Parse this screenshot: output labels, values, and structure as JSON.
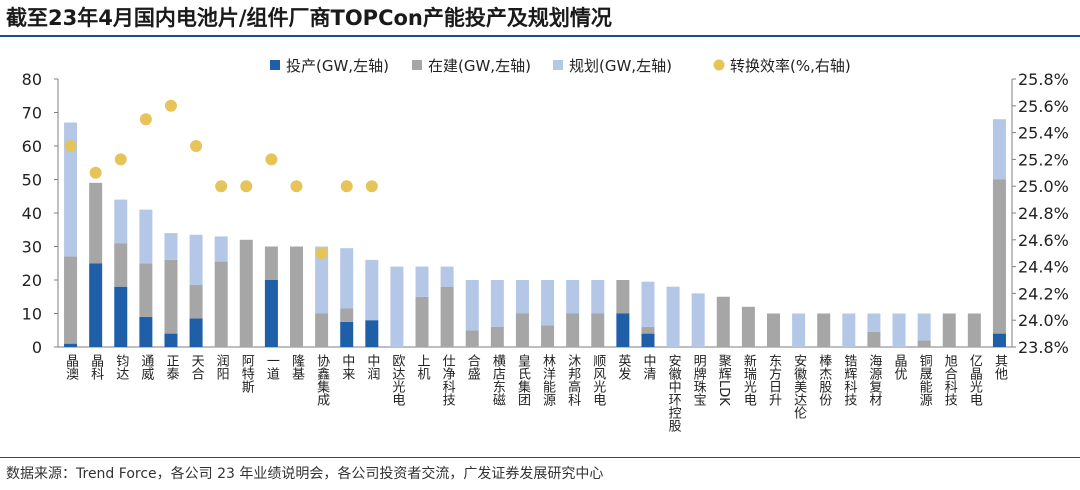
{
  "header": {
    "title": "截至23年4月国内电池片/组件厂商TOPCon产能投产及规划情况"
  },
  "footer": {
    "source": "数据来源：Trend Force，各公司 23 年业绩说明会，各公司投资者交流，广发证券发展研究中心"
  },
  "chart_data": {
    "type": "bar",
    "stacked": true,
    "categories": [
      "晶澳",
      "晶科",
      "钧达",
      "通威",
      "正泰",
      "天合",
      "润阳",
      "阿特斯",
      "一道",
      "隆基",
      "协鑫集成",
      "中来",
      "中润",
      "欧达光电",
      "上机",
      "仕净科技",
      "合盛",
      "横店东磁",
      "皇氏集团",
      "林洋能源",
      "沐邦高科",
      "顺风光电",
      "英发",
      "中清",
      "安徽中环控股",
      "明牌珠宝",
      "聚辉LDK",
      "新瑞光电",
      "东方日升",
      "安徽美达伦",
      "棒杰股份",
      "锆辉科技",
      "海源复材",
      "晶优",
      "铜晟能源",
      "旭合科技",
      "亿晶光电",
      "其他"
    ],
    "series": [
      {
        "name": "投产(GW,左轴)",
        "color": "#1f5fa8",
        "values": [
          1,
          25,
          18,
          9,
          4,
          8.5,
          0,
          0,
          20,
          0,
          0,
          7.5,
          8,
          0,
          0,
          0,
          0,
          0,
          0,
          0,
          0,
          0,
          10,
          4,
          0,
          0,
          0,
          0,
          0,
          0,
          0,
          0,
          0,
          0,
          0,
          0,
          0,
          4
        ]
      },
      {
        "name": "在建(GW,左轴)",
        "color": "#a6a6a6",
        "values": [
          26,
          24,
          13,
          16,
          22,
          10,
          25.5,
          32,
          10,
          30,
          10,
          4,
          0,
          0,
          15,
          18,
          5,
          6,
          10,
          6.5,
          10,
          10,
          10,
          2,
          0,
          0,
          15,
          12,
          10,
          0,
          10,
          0,
          4.5,
          0,
          2,
          10,
          10,
          46
        ]
      },
      {
        "name": "规划(GW,左轴)",
        "color": "#b4c7e7",
        "values": [
          40,
          0,
          13,
          16,
          8,
          15,
          7.5,
          0,
          0,
          0,
          20,
          18,
          18,
          24,
          9,
          6,
          15,
          14,
          10,
          13.5,
          10,
          10,
          0,
          13.5,
          18,
          16,
          0,
          0,
          0,
          10,
          0,
          10,
          5.5,
          10,
          8,
          0,
          0,
          18
        ]
      }
    ],
    "scatter": {
      "name": "转换效率(%,右轴)",
      "color": "#e6c45a",
      "values": [
        25.3,
        25.1,
        25.2,
        25.5,
        25.6,
        25.3,
        25.0,
        25.0,
        25.2,
        25.0,
        24.5,
        25.0,
        25.0,
        null,
        null,
        null,
        null,
        null,
        null,
        null,
        null,
        null,
        null,
        null,
        null,
        null,
        null,
        null,
        null,
        null,
        null,
        null,
        null,
        null,
        null,
        null,
        null,
        null
      ]
    },
    "left_axis": {
      "min": 0,
      "max": 80,
      "ticks": [
        0,
        10,
        20,
        30,
        40,
        50,
        60,
        70,
        80
      ]
    },
    "right_axis": {
      "min": 23.8,
      "max": 25.8,
      "ticks": [
        "23.8%",
        "24.0%",
        "24.2%",
        "24.4%",
        "24.6%",
        "24.8%",
        "25.0%",
        "25.2%",
        "25.4%",
        "25.6%",
        "25.8%"
      ]
    },
    "legend_position": "top"
  }
}
